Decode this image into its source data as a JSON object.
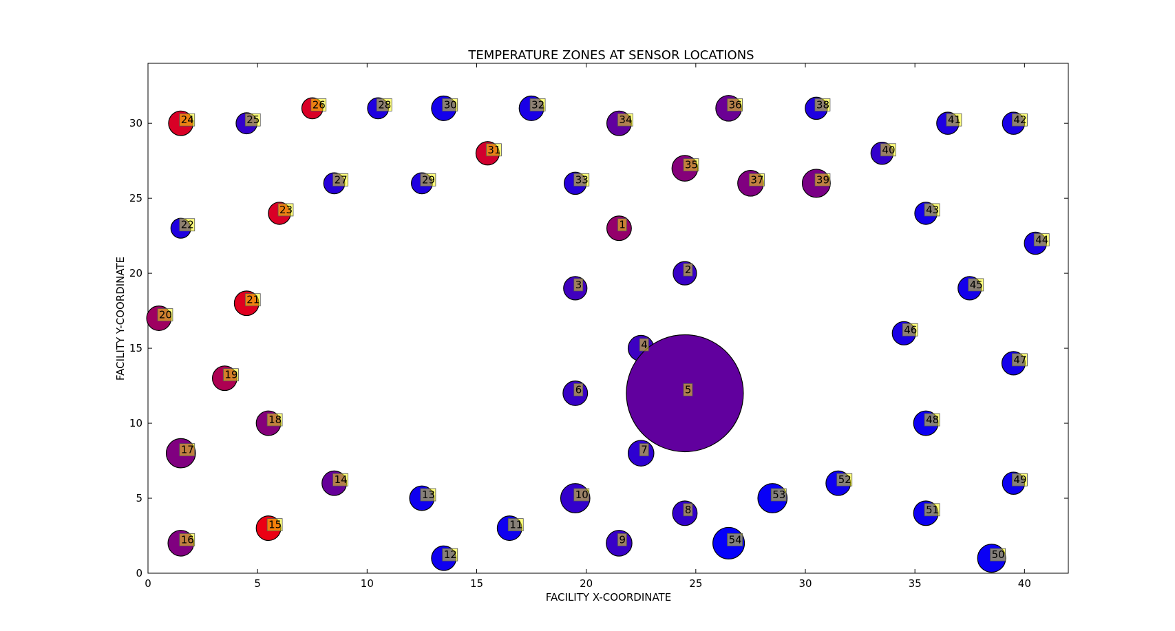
{
  "chart_data": {
    "type": "scatter",
    "title": "TEMPERATURE ZONES AT SENSOR LOCATIONS",
    "xlabel": "FACILITY X-COORDINATE",
    "ylabel": "FACILITY Y-COORDINATE",
    "xlim": [
      0,
      42
    ],
    "ylim": [
      0,
      34
    ],
    "xticks": [
      0,
      5,
      10,
      15,
      20,
      25,
      30,
      35,
      40
    ],
    "yticks": [
      0,
      5,
      10,
      15,
      20,
      25,
      30
    ],
    "grid": false,
    "color_scale": {
      "low": "#0000ff",
      "high": "#ff0000",
      "label_box_color": "#ffff00"
    },
    "points": [
      {
        "id": "1",
        "x": 21.5,
        "y": 23,
        "size": 1.05,
        "temp": 0.58
      },
      {
        "id": "2",
        "x": 24.5,
        "y": 20,
        "size": 1.0,
        "temp": 0.22
      },
      {
        "id": "3",
        "x": 19.5,
        "y": 19,
        "size": 1.0,
        "temp": 0.25
      },
      {
        "id": "4",
        "x": 22.5,
        "y": 15,
        "size": 1.1,
        "temp": 0.24
      },
      {
        "id": "5",
        "x": 24.5,
        "y": 12,
        "size": 5.0,
        "temp": 0.38
      },
      {
        "id": "6",
        "x": 19.5,
        "y": 12,
        "size": 1.05,
        "temp": 0.22
      },
      {
        "id": "7",
        "x": 22.5,
        "y": 8,
        "size": 1.1,
        "temp": 0.18
      },
      {
        "id": "8",
        "x": 24.5,
        "y": 4,
        "size": 1.05,
        "temp": 0.2
      },
      {
        "id": "9",
        "x": 21.5,
        "y": 2,
        "size": 1.1,
        "temp": 0.22
      },
      {
        "id": "10",
        "x": 19.5,
        "y": 5,
        "size": 1.25,
        "temp": 0.2
      },
      {
        "id": "11",
        "x": 16.5,
        "y": 3,
        "size": 1.05,
        "temp": 0.06
      },
      {
        "id": "12",
        "x": 13.5,
        "y": 1,
        "size": 1.05,
        "temp": 0.06
      },
      {
        "id": "13",
        "x": 12.5,
        "y": 5,
        "size": 1.05,
        "temp": 0.06
      },
      {
        "id": "14",
        "x": 8.5,
        "y": 6,
        "size": 1.05,
        "temp": 0.4
      },
      {
        "id": "15",
        "x": 5.5,
        "y": 3,
        "size": 1.05,
        "temp": 0.92
      },
      {
        "id": "16",
        "x": 1.5,
        "y": 2,
        "size": 1.1,
        "temp": 0.5
      },
      {
        "id": "17",
        "x": 1.5,
        "y": 8,
        "size": 1.25,
        "temp": 0.5
      },
      {
        "id": "18",
        "x": 5.5,
        "y": 10,
        "size": 1.05,
        "temp": 0.52
      },
      {
        "id": "19",
        "x": 3.5,
        "y": 13,
        "size": 1.05,
        "temp": 0.68
      },
      {
        "id": "20",
        "x": 0.5,
        "y": 17,
        "size": 1.05,
        "temp": 0.62
      },
      {
        "id": "21",
        "x": 4.5,
        "y": 18,
        "size": 1.05,
        "temp": 0.88
      },
      {
        "id": "22",
        "x": 1.5,
        "y": 23,
        "size": 0.85,
        "temp": 0.12
      },
      {
        "id": "23",
        "x": 6.0,
        "y": 24,
        "size": 0.95,
        "temp": 0.85
      },
      {
        "id": "24",
        "x": 1.5,
        "y": 30,
        "size": 1.05,
        "temp": 0.85
      },
      {
        "id": "25",
        "x": 4.5,
        "y": 30,
        "size": 0.9,
        "temp": 0.2
      },
      {
        "id": "26",
        "x": 7.5,
        "y": 31,
        "size": 0.9,
        "temp": 0.85
      },
      {
        "id": "27",
        "x": 8.5,
        "y": 26,
        "size": 0.9,
        "temp": 0.15
      },
      {
        "id": "28",
        "x": 10.5,
        "y": 31,
        "size": 0.9,
        "temp": 0.12
      },
      {
        "id": "29",
        "x": 12.5,
        "y": 26,
        "size": 0.9,
        "temp": 0.12
      },
      {
        "id": "30",
        "x": 13.5,
        "y": 31,
        "size": 1.05,
        "temp": 0.08
      },
      {
        "id": "31",
        "x": 15.5,
        "y": 28,
        "size": 1.0,
        "temp": 0.82
      },
      {
        "id": "32",
        "x": 17.5,
        "y": 31,
        "size": 1.05,
        "temp": 0.1
      },
      {
        "id": "33",
        "x": 19.5,
        "y": 26,
        "size": 0.95,
        "temp": 0.15
      },
      {
        "id": "34",
        "x": 21.5,
        "y": 30,
        "size": 1.05,
        "temp": 0.38
      },
      {
        "id": "35",
        "x": 24.5,
        "y": 27,
        "size": 1.1,
        "temp": 0.52
      },
      {
        "id": "36",
        "x": 26.5,
        "y": 31,
        "size": 1.1,
        "temp": 0.42
      },
      {
        "id": "37",
        "x": 27.5,
        "y": 26,
        "size": 1.1,
        "temp": 0.5
      },
      {
        "id": "38",
        "x": 30.5,
        "y": 31,
        "size": 0.95,
        "temp": 0.12
      },
      {
        "id": "39",
        "x": 30.5,
        "y": 26,
        "size": 1.2,
        "temp": 0.48
      },
      {
        "id": "40",
        "x": 33.5,
        "y": 28,
        "size": 0.95,
        "temp": 0.2
      },
      {
        "id": "41",
        "x": 36.5,
        "y": 30,
        "size": 0.95,
        "temp": 0.12
      },
      {
        "id": "42",
        "x": 39.5,
        "y": 30,
        "size": 0.95,
        "temp": 0.1
      },
      {
        "id": "43",
        "x": 35.5,
        "y": 24,
        "size": 0.95,
        "temp": 0.08
      },
      {
        "id": "44",
        "x": 40.5,
        "y": 22,
        "size": 0.95,
        "temp": 0.1
      },
      {
        "id": "45",
        "x": 37.5,
        "y": 19,
        "size": 1.0,
        "temp": 0.08
      },
      {
        "id": "46",
        "x": 34.5,
        "y": 16,
        "size": 1.0,
        "temp": 0.1
      },
      {
        "id": "47",
        "x": 39.5,
        "y": 14,
        "size": 1.0,
        "temp": 0.08
      },
      {
        "id": "48",
        "x": 35.5,
        "y": 10,
        "size": 1.05,
        "temp": 0.05
      },
      {
        "id": "49",
        "x": 39.5,
        "y": 6,
        "size": 0.95,
        "temp": 0.05
      },
      {
        "id": "50",
        "x": 38.5,
        "y": 1,
        "size": 1.2,
        "temp": 0.04
      },
      {
        "id": "51",
        "x": 35.5,
        "y": 4,
        "size": 1.05,
        "temp": 0.05
      },
      {
        "id": "52",
        "x": 31.5,
        "y": 6,
        "size": 1.05,
        "temp": 0.06
      },
      {
        "id": "53",
        "x": 28.5,
        "y": 5,
        "size": 1.25,
        "temp": 0.03
      },
      {
        "id": "54",
        "x": 26.5,
        "y": 2,
        "size": 1.35,
        "temp": 0.02
      }
    ]
  }
}
